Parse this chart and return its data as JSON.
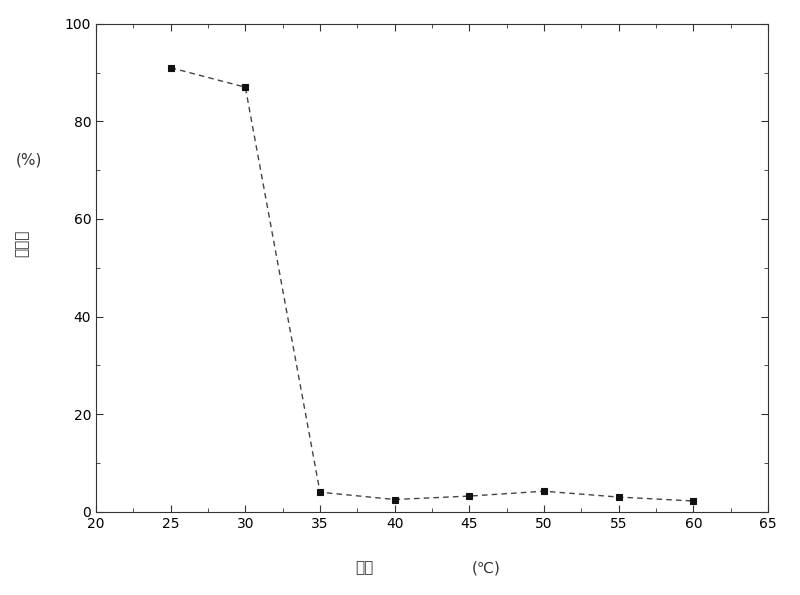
{
  "x": [
    25,
    30,
    35,
    40,
    45,
    50,
    55,
    60
  ],
  "y": [
    91,
    87,
    4,
    2.5,
    3.2,
    4.2,
    3.0,
    2.2
  ],
  "xlim": [
    20,
    65
  ],
  "ylim": [
    0,
    100
  ],
  "xticks": [
    20,
    25,
    30,
    35,
    40,
    45,
    50,
    55,
    60,
    65
  ],
  "yticks": [
    0,
    20,
    40,
    60,
    80,
    100
  ],
  "xlabel_main": "温度",
  "xlabel_unit": "(℃)",
  "ylabel_main": "透光率",
  "ylabel_unit": "(%)",
  "line_color": "#444444",
  "marker_color": "#111111",
  "marker_style": "s",
  "marker_size": 5,
  "line_width": 1.0,
  "background_color": "#ffffff",
  "figure_facecolor": "#ffffff"
}
